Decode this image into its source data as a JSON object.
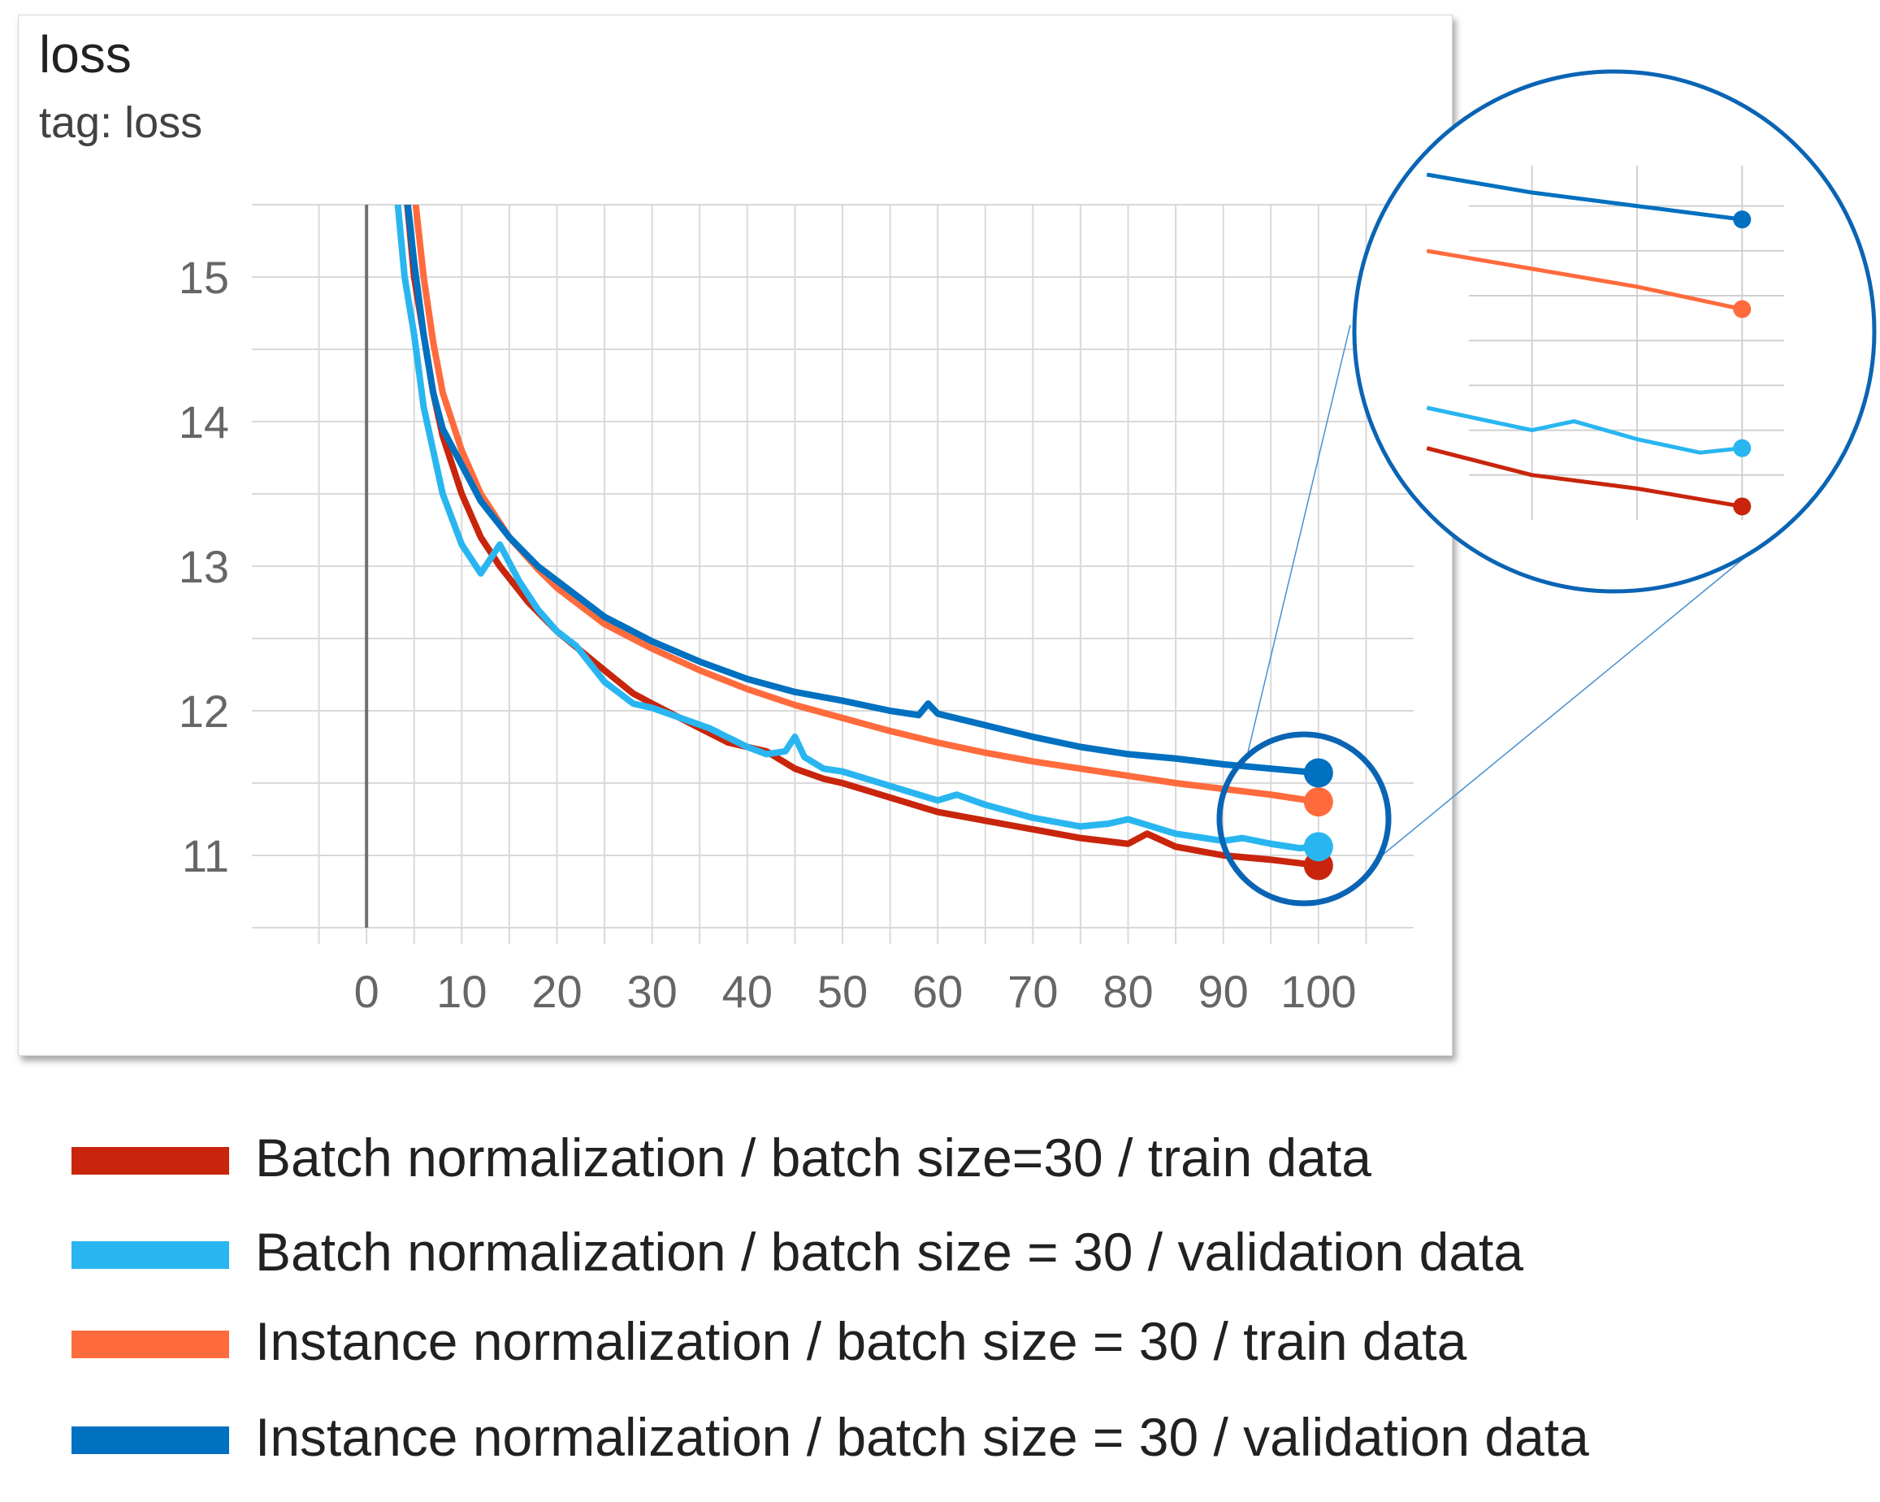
{
  "chart_data": {
    "type": "line",
    "title": "loss",
    "subtitle": "tag: loss",
    "xlabel": "",
    "ylabel": "",
    "x_ticks": [
      0,
      10,
      20,
      30,
      40,
      50,
      60,
      70,
      80,
      90,
      100
    ],
    "y_ticks": [
      11,
      12,
      13,
      14,
      15
    ],
    "xlim": [
      -10,
      110
    ],
    "ylim": [
      10.5,
      15.5
    ],
    "grid": true,
    "legend_position": "bottom",
    "series": [
      {
        "name": "Batch normalization / batch size=30 / train data",
        "color": "#c8250c",
        "x": [
          4,
          5,
          6,
          7,
          8,
          10,
          12,
          14,
          17,
          20,
          25,
          28,
          30,
          35,
          38,
          40,
          42,
          45,
          48,
          50,
          55,
          60,
          65,
          70,
          75,
          80,
          82,
          85,
          90,
          95,
          100
        ],
        "y": [
          15.7,
          15.0,
          14.6,
          14.2,
          13.9,
          13.5,
          13.2,
          13.0,
          12.75,
          12.55,
          12.28,
          12.12,
          12.05,
          11.88,
          11.78,
          11.75,
          11.72,
          11.6,
          11.53,
          11.5,
          11.4,
          11.3,
          11.24,
          11.18,
          11.12,
          11.08,
          11.15,
          11.06,
          11.0,
          10.97,
          10.93
        ]
      },
      {
        "name": "Batch normalization / batch size = 30 / validation data",
        "color": "#29b6f0",
        "x": [
          3,
          4,
          5,
          6,
          7,
          8,
          10,
          12,
          14,
          16,
          18,
          20,
          22,
          25,
          28,
          30,
          33,
          36,
          40,
          42,
          44,
          45,
          46,
          48,
          50,
          55,
          58,
          60,
          62,
          65,
          70,
          75,
          78,
          80,
          85,
          90,
          92,
          95,
          98,
          100
        ],
        "y": [
          15.7,
          15.0,
          14.6,
          14.1,
          13.8,
          13.5,
          13.15,
          12.95,
          13.15,
          12.9,
          12.7,
          12.55,
          12.45,
          12.2,
          12.05,
          12.02,
          11.95,
          11.88,
          11.75,
          11.7,
          11.72,
          11.82,
          11.68,
          11.6,
          11.58,
          11.48,
          11.42,
          11.38,
          11.42,
          11.35,
          11.26,
          11.2,
          11.22,
          11.25,
          11.15,
          11.1,
          11.12,
          11.08,
          11.05,
          11.06
        ]
      },
      {
        "name": "Instance normalization / batch size = 30 / train data",
        "color": "#ff6b3d",
        "x": [
          5,
          6,
          7,
          8,
          10,
          12,
          15,
          18,
          20,
          25,
          30,
          35,
          40,
          45,
          50,
          55,
          60,
          65,
          70,
          75,
          80,
          85,
          90,
          95,
          100
        ],
        "y": [
          15.6,
          15.0,
          14.55,
          14.2,
          13.8,
          13.5,
          13.2,
          12.98,
          12.85,
          12.6,
          12.43,
          12.28,
          12.15,
          12.04,
          11.95,
          11.86,
          11.78,
          11.71,
          11.65,
          11.6,
          11.55,
          11.5,
          11.46,
          11.42,
          11.37
        ]
      },
      {
        "name": "Instance normalization / batch size = 30 / validation data",
        "color": "#0070c0",
        "x": [
          4,
          5,
          6,
          7,
          8,
          10,
          12,
          15,
          18,
          20,
          25,
          30,
          35,
          40,
          45,
          50,
          55,
          58,
          59,
          60,
          65,
          70,
          75,
          80,
          85,
          90,
          95,
          100
        ],
        "y": [
          15.7,
          15.1,
          14.6,
          14.2,
          13.95,
          13.7,
          13.45,
          13.2,
          13.0,
          12.9,
          12.65,
          12.48,
          12.34,
          12.22,
          12.13,
          12.07,
          12.0,
          11.97,
          12.05,
          11.98,
          11.9,
          11.82,
          11.75,
          11.7,
          11.67,
          11.63,
          11.6,
          11.57
        ]
      }
    ],
    "inset": {
      "xlim": [
        87,
        102
      ],
      "ylim": [
        10.9,
        11.65
      ],
      "grid_x": [
        90,
        95,
        100
      ]
    }
  }
}
